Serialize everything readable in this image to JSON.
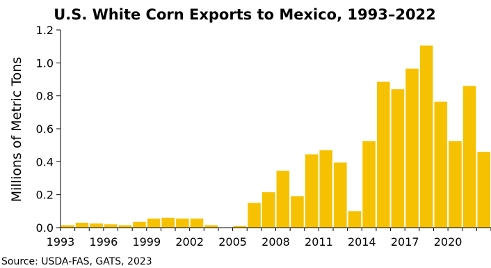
{
  "chart_data": {
    "type": "bar",
    "title": "U.S. White Corn Exports to Mexico, 1993–2022",
    "ylabel": "Millions of Metric Tons",
    "xlabel": "",
    "source": "Source: USDA-FAS, GATS, 2023",
    "ylim": [
      0,
      1.2
    ],
    "yticks": [
      "0.0",
      "0.2",
      "0.4",
      "0.6",
      "0.8",
      "1.0",
      "1.2"
    ],
    "xticks": [
      "1993",
      "1996",
      "1999",
      "2002",
      "2005",
      "2008",
      "2011",
      "2014",
      "2017",
      "2020"
    ],
    "categories": [
      1993,
      1994,
      1995,
      1996,
      1997,
      1998,
      1999,
      2000,
      2001,
      2002,
      2003,
      2004,
      2005,
      2006,
      2007,
      2008,
      2009,
      2010,
      2011,
      2012,
      2013,
      2014,
      2015,
      2016,
      2017,
      2018,
      2019,
      2020,
      2021,
      2022
    ],
    "values": [
      0.015,
      0.03,
      0.025,
      0.02,
      0.015,
      0.035,
      0.055,
      0.06,
      0.055,
      0.055,
      0.015,
      0.0,
      0.01,
      0.15,
      0.215,
      0.345,
      0.19,
      0.445,
      0.47,
      0.395,
      0.1,
      0.525,
      0.885,
      0.84,
      0.965,
      1.105,
      0.765,
      0.525,
      0.86,
      0.46
    ],
    "bar_color": "#f6c200",
    "grid": false
  }
}
